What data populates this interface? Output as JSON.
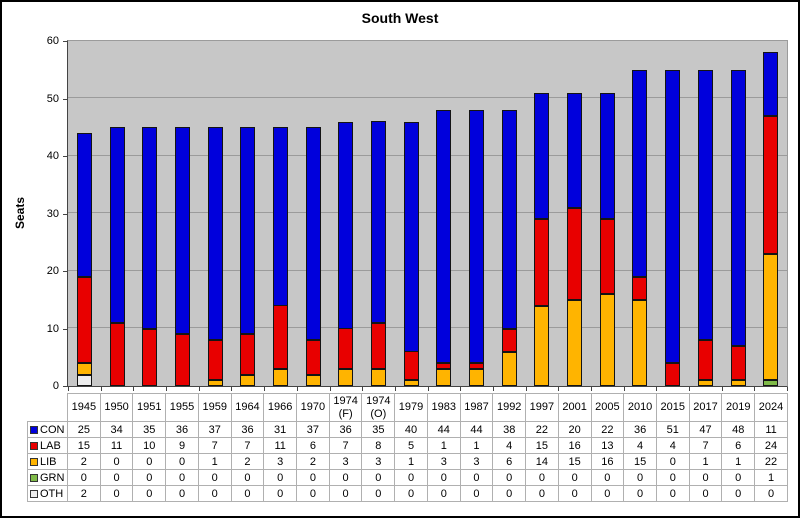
{
  "chart_data": {
    "type": "bar",
    "stacked": true,
    "title": "South West",
    "ylabel": "Seats",
    "ylim": [
      0,
      60
    ],
    "ytick_interval": 10,
    "grid": true,
    "legend_position": "table-left",
    "plot_bg": "#c7c7c7",
    "gridline_color": "#9b9b9b",
    "categories": [
      "1945",
      "1950",
      "1951",
      "1955",
      "1959",
      "1964",
      "1966",
      "1970",
      "1974 (F)",
      "1974 (O)",
      "1979",
      "1983",
      "1987",
      "1992",
      "1997",
      "2001",
      "2005",
      "2010",
      "2015",
      "2017",
      "2019",
      "2024"
    ],
    "series": [
      {
        "name": "CON",
        "color": "#0000dc",
        "values": [
          25,
          34,
          35,
          36,
          37,
          36,
          31,
          37,
          36,
          35,
          40,
          44,
          44,
          38,
          22,
          20,
          22,
          36,
          51,
          47,
          48,
          11
        ]
      },
      {
        "name": "LAB",
        "color": "#e80000",
        "values": [
          15,
          11,
          10,
          9,
          7,
          7,
          11,
          6,
          7,
          8,
          5,
          1,
          1,
          4,
          15,
          16,
          13,
          4,
          4,
          7,
          6,
          24
        ]
      },
      {
        "name": "LIB",
        "color": "#ffb400",
        "values": [
          2,
          0,
          0,
          0,
          1,
          2,
          3,
          2,
          3,
          3,
          1,
          3,
          3,
          6,
          14,
          15,
          16,
          15,
          0,
          1,
          1,
          22
        ]
      },
      {
        "name": "GRN",
        "color": "#7fba48",
        "values": [
          0,
          0,
          0,
          0,
          0,
          0,
          0,
          0,
          0,
          0,
          0,
          0,
          0,
          0,
          0,
          0,
          0,
          0,
          0,
          0,
          0,
          1
        ]
      },
      {
        "name": "OTH",
        "color": "#ededed",
        "values": [
          2,
          0,
          0,
          0,
          0,
          0,
          0,
          0,
          0,
          0,
          0,
          0,
          0,
          0,
          0,
          0,
          0,
          0,
          0,
          0,
          0,
          0
        ]
      }
    ],
    "stack_order_bottom_to_top": [
      "OTH",
      "GRN",
      "LIB",
      "LAB",
      "CON"
    ]
  }
}
